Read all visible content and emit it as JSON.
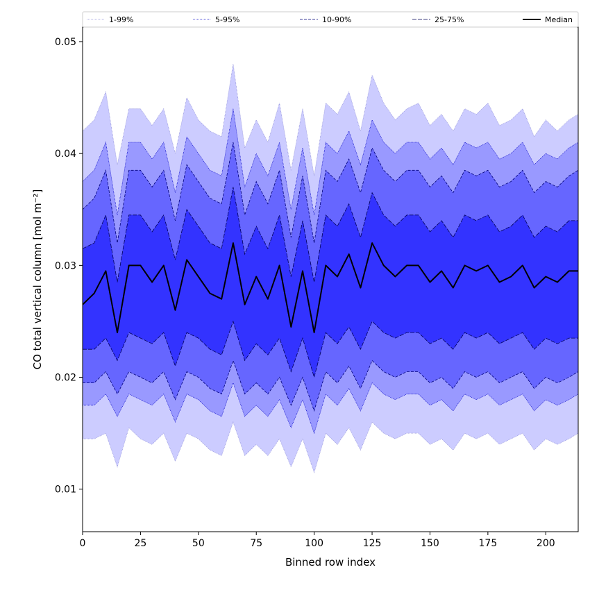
{
  "chart_data": {
    "type": "area",
    "xlabel": "Binned row index",
    "ylabel": "CO total vertical column [mol m⁻²]",
    "xlim": [
      0,
      214
    ],
    "ylim": [
      0.0062,
      0.0513
    ],
    "xticks": [
      0,
      25,
      50,
      75,
      100,
      125,
      150,
      175,
      200
    ],
    "yticks": [
      0.01,
      0.02,
      0.03,
      0.04,
      0.05
    ],
    "ytick_labels": [
      "0.01",
      "0.02",
      "0.03",
      "0.04",
      "0.05"
    ],
    "legend_position": "top, full width above plot",
    "bands": [
      {
        "name": "1-99%",
        "fill": "#ccccff",
        "line": "#9999dd",
        "dash": "1 1"
      },
      {
        "name": "5-95%",
        "fill": "#9999ff",
        "line": "#1a1acc",
        "dash": "1 1"
      },
      {
        "name": "10-90%",
        "fill": "#6666ff",
        "line": "#00007a",
        "dash": "4 2"
      },
      {
        "name": "25-75%",
        "fill": "#3333ff",
        "line": "#00005a",
        "dash": "6 2"
      }
    ],
    "median_series": {
      "name": "Median",
      "color": "#000000"
    },
    "x": [
      0,
      5,
      10,
      15,
      20,
      25,
      30,
      35,
      40,
      45,
      50,
      55,
      60,
      65,
      70,
      75,
      80,
      85,
      90,
      95,
      100,
      105,
      110,
      115,
      120,
      125,
      130,
      135,
      140,
      145,
      150,
      155,
      160,
      165,
      170,
      175,
      180,
      185,
      190,
      195,
      200,
      205,
      210,
      214
    ],
    "median": [
      0.0265,
      0.0275,
      0.0295,
      0.024,
      0.03,
      0.03,
      0.0285,
      0.03,
      0.026,
      0.0305,
      0.029,
      0.0275,
      0.027,
      0.032,
      0.0265,
      0.029,
      0.027,
      0.03,
      0.0245,
      0.0295,
      0.024,
      0.03,
      0.029,
      0.031,
      0.028,
      0.032,
      0.03,
      0.029,
      0.03,
      0.03,
      0.0285,
      0.0295,
      0.028,
      0.03,
      0.0295,
      0.03,
      0.0285,
      0.029,
      0.03,
      0.028,
      0.029,
      0.0285,
      0.0295,
      0.0295
    ],
    "p25": [
      0.0225,
      0.0225,
      0.0235,
      0.0215,
      0.024,
      0.0235,
      0.023,
      0.024,
      0.021,
      0.024,
      0.0235,
      0.0225,
      0.022,
      0.025,
      0.0215,
      0.023,
      0.022,
      0.0235,
      0.0205,
      0.0235,
      0.02,
      0.024,
      0.023,
      0.0245,
      0.0225,
      0.025,
      0.024,
      0.0235,
      0.024,
      0.024,
      0.023,
      0.0235,
      0.0225,
      0.024,
      0.0235,
      0.024,
      0.023,
      0.0235,
      0.024,
      0.0225,
      0.0235,
      0.023,
      0.0235,
      0.0235
    ],
    "p75": [
      0.0315,
      0.032,
      0.0345,
      0.0285,
      0.0345,
      0.0345,
      0.033,
      0.0345,
      0.0305,
      0.035,
      0.0335,
      0.032,
      0.0315,
      0.037,
      0.031,
      0.0335,
      0.0315,
      0.0345,
      0.029,
      0.034,
      0.0285,
      0.0345,
      0.0335,
      0.0355,
      0.0325,
      0.0365,
      0.0345,
      0.0335,
      0.0345,
      0.0345,
      0.033,
      0.034,
      0.0325,
      0.0345,
      0.034,
      0.0345,
      0.033,
      0.0335,
      0.0345,
      0.0325,
      0.0335,
      0.033,
      0.034,
      0.034
    ],
    "p10": [
      0.0195,
      0.0195,
      0.0205,
      0.0185,
      0.0205,
      0.02,
      0.0195,
      0.0205,
      0.018,
      0.0205,
      0.02,
      0.019,
      0.0185,
      0.0215,
      0.0185,
      0.0195,
      0.0185,
      0.02,
      0.0175,
      0.02,
      0.017,
      0.0205,
      0.0195,
      0.021,
      0.019,
      0.0215,
      0.0205,
      0.02,
      0.0205,
      0.0205,
      0.0195,
      0.02,
      0.019,
      0.0205,
      0.02,
      0.0205,
      0.0195,
      0.02,
      0.0205,
      0.019,
      0.02,
      0.0195,
      0.02,
      0.0205
    ],
    "p90": [
      0.035,
      0.036,
      0.0385,
      0.032,
      0.0385,
      0.0385,
      0.037,
      0.0385,
      0.034,
      0.039,
      0.0375,
      0.036,
      0.0355,
      0.041,
      0.0345,
      0.0375,
      0.0355,
      0.0385,
      0.0325,
      0.038,
      0.032,
      0.0385,
      0.0375,
      0.0395,
      0.0365,
      0.0405,
      0.0385,
      0.0375,
      0.0385,
      0.0385,
      0.037,
      0.038,
      0.0365,
      0.0385,
      0.038,
      0.0385,
      0.037,
      0.0375,
      0.0385,
      0.0365,
      0.0375,
      0.037,
      0.038,
      0.0385
    ],
    "p5": [
      0.0175,
      0.0175,
      0.0185,
      0.0165,
      0.0185,
      0.018,
      0.0175,
      0.0185,
      0.016,
      0.0185,
      0.018,
      0.017,
      0.0165,
      0.0195,
      0.0165,
      0.0175,
      0.0165,
      0.018,
      0.0155,
      0.018,
      0.015,
      0.0185,
      0.0175,
      0.019,
      0.017,
      0.0195,
      0.0185,
      0.018,
      0.0185,
      0.0185,
      0.0175,
      0.018,
      0.017,
      0.0185,
      0.018,
      0.0185,
      0.0175,
      0.018,
      0.0185,
      0.017,
      0.018,
      0.0175,
      0.018,
      0.0185
    ],
    "p95": [
      0.0375,
      0.0385,
      0.041,
      0.0345,
      0.041,
      0.041,
      0.0395,
      0.041,
      0.0365,
      0.0415,
      0.04,
      0.0385,
      0.038,
      0.044,
      0.037,
      0.04,
      0.038,
      0.041,
      0.035,
      0.0405,
      0.0345,
      0.041,
      0.04,
      0.042,
      0.039,
      0.043,
      0.041,
      0.04,
      0.041,
      0.041,
      0.0395,
      0.0405,
      0.039,
      0.041,
      0.0405,
      0.041,
      0.0395,
      0.04,
      0.041,
      0.039,
      0.04,
      0.0395,
      0.0405,
      0.041
    ],
    "p1": [
      0.0145,
      0.0145,
      0.015,
      0.012,
      0.0155,
      0.0145,
      0.014,
      0.015,
      0.0125,
      0.015,
      0.0145,
      0.0135,
      0.013,
      0.016,
      0.013,
      0.014,
      0.013,
      0.0145,
      0.012,
      0.0145,
      0.0115,
      0.015,
      0.014,
      0.0155,
      0.0135,
      0.016,
      0.015,
      0.0145,
      0.015,
      0.015,
      0.014,
      0.0145,
      0.0135,
      0.015,
      0.0145,
      0.015,
      0.014,
      0.0145,
      0.015,
      0.0135,
      0.0145,
      0.014,
      0.0145,
      0.015
    ],
    "p99": [
      0.042,
      0.043,
      0.0455,
      0.039,
      0.044,
      0.044,
      0.0425,
      0.044,
      0.04,
      0.045,
      0.043,
      0.042,
      0.0415,
      0.048,
      0.0405,
      0.043,
      0.041,
      0.0445,
      0.0385,
      0.044,
      0.038,
      0.0445,
      0.0435,
      0.0455,
      0.042,
      0.047,
      0.0445,
      0.043,
      0.044,
      0.0445,
      0.0425,
      0.0435,
      0.042,
      0.044,
      0.0435,
      0.0445,
      0.0425,
      0.043,
      0.044,
      0.0415,
      0.043,
      0.042,
      0.043,
      0.0435
    ]
  }
}
